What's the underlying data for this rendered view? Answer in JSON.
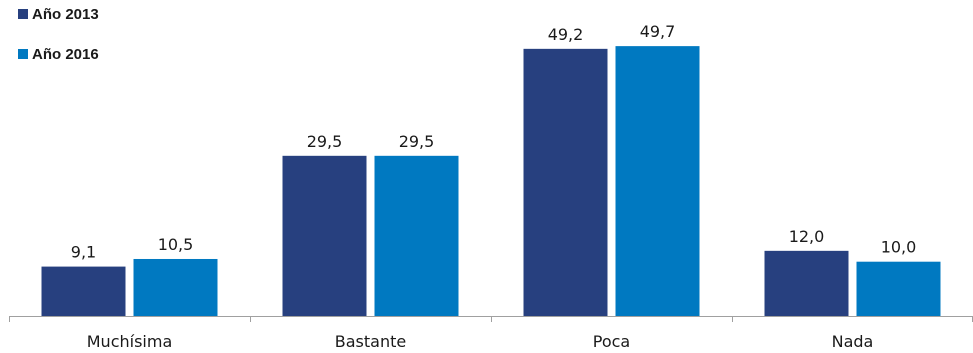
{
  "chart_data": {
    "type": "bar",
    "categories": [
      "Muchísima",
      "Bastante",
      "Poca",
      "Nada"
    ],
    "series": [
      {
        "name": "Año 2013",
        "values": [
          9.1,
          29.5,
          49.2,
          12.0
        ],
        "labels": [
          "9,1",
          "29,5",
          "49,2",
          "12,0"
        ],
        "color": "#27407f"
      },
      {
        "name": "Año 2016",
        "values": [
          10.5,
          29.5,
          49.7,
          10.0
        ],
        "labels": [
          "10,5",
          "29,5",
          "49,7",
          "10,0"
        ],
        "color": "#0079c1"
      }
    ],
    "ylim": [
      0,
      55
    ],
    "legend_position": "top-left",
    "grid": false
  }
}
